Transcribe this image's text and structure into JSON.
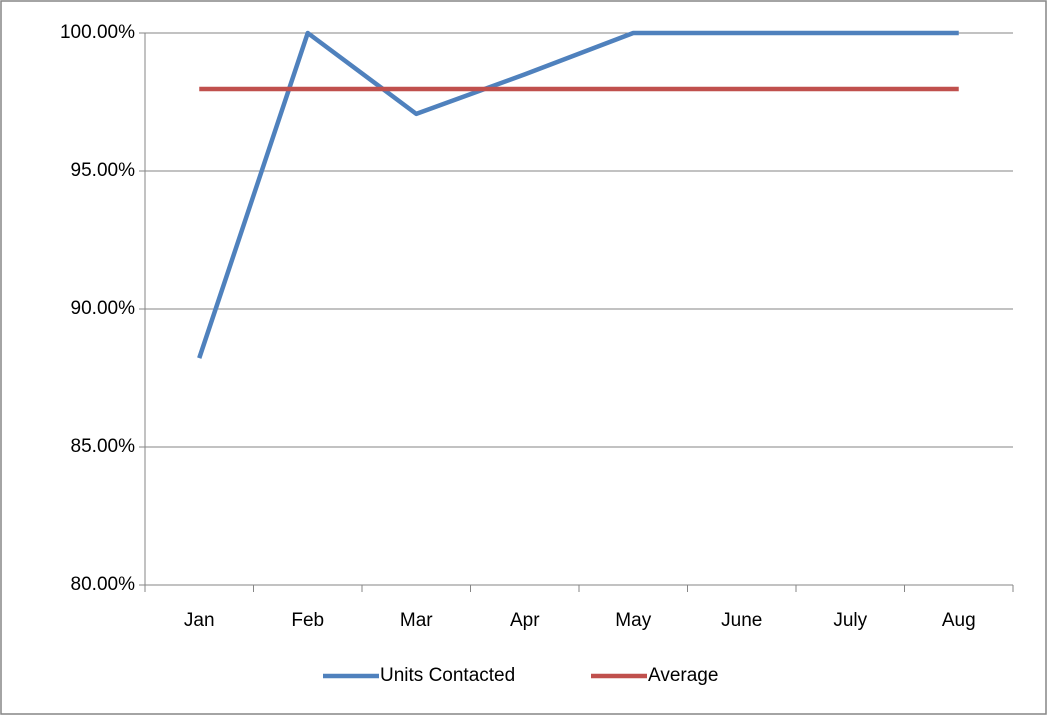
{
  "chart_data": {
    "type": "line",
    "categories": [
      "Jan",
      "Feb",
      "Mar",
      "Apr",
      "May",
      "June",
      "July",
      "Aug"
    ],
    "series": [
      {
        "name": "Units Contacted",
        "color": "#4f81bd",
        "values": [
          88.22,
          100,
          97.07,
          98.5,
          100,
          100,
          100,
          100
        ]
      },
      {
        "name": "Average",
        "color": "#c0504d",
        "values": [
          97.97,
          97.97,
          97.97,
          97.97,
          97.97,
          97.97,
          97.97,
          97.97
        ]
      }
    ],
    "ylim": [
      80,
      100
    ],
    "yticks": [
      {
        "value": 80,
        "label": "80.00%"
      },
      {
        "value": 85,
        "label": "85.00%"
      },
      {
        "value": 90,
        "label": "90.00%"
      },
      {
        "value": 95,
        "label": "95.00%"
      },
      {
        "value": 100,
        "label": "100.00%"
      }
    ],
    "grid": true,
    "legend": "bottom"
  }
}
